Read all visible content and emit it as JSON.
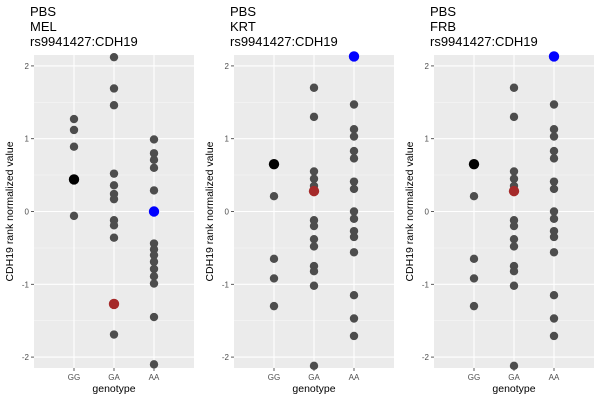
{
  "chart_data": [
    {
      "type": "scatter",
      "title": [
        "PBS",
        "MEL",
        "rs9941427:CDH19"
      ],
      "xlabel": "genotype",
      "ylabel": "CDH19 rank normalized value",
      "categories": [
        "GG",
        "GA",
        "AA"
      ],
      "ylim": [
        -2.15,
        2.15
      ],
      "yticks": [
        -2,
        -1,
        0,
        1,
        2
      ],
      "grid": true,
      "legend": "none",
      "colors": {
        "default": "#4d4d4d",
        "black": "#000000",
        "red": "#a52a2a",
        "blue": "#0000ff"
      },
      "points": [
        {
          "x": "GG",
          "y": 1.27
        },
        {
          "x": "GG",
          "y": 1.12
        },
        {
          "x": "GG",
          "y": 0.89
        },
        {
          "x": "GG",
          "y": -0.06
        },
        {
          "x": "GA",
          "y": 2.12
        },
        {
          "x": "GA",
          "y": 1.69
        },
        {
          "x": "GA",
          "y": 1.46
        },
        {
          "x": "GA",
          "y": 0.52
        },
        {
          "x": "GA",
          "y": 0.36
        },
        {
          "x": "GA",
          "y": 0.24
        },
        {
          "x": "GA",
          "y": 0.17
        },
        {
          "x": "GA",
          "y": -0.12
        },
        {
          "x": "GA",
          "y": -0.19
        },
        {
          "x": "GA",
          "y": -0.36
        },
        {
          "x": "GA",
          "y": -1.69
        },
        {
          "x": "AA",
          "y": 0.99
        },
        {
          "x": "AA",
          "y": 0.8
        },
        {
          "x": "AA",
          "y": 0.71
        },
        {
          "x": "AA",
          "y": 0.6
        },
        {
          "x": "AA",
          "y": 0.29
        },
        {
          "x": "AA",
          "y": -0.44
        },
        {
          "x": "AA",
          "y": -0.52
        },
        {
          "x": "AA",
          "y": -0.6
        },
        {
          "x": "AA",
          "y": -0.69
        },
        {
          "x": "AA",
          "y": -0.79
        },
        {
          "x": "AA",
          "y": -0.89
        },
        {
          "x": "AA",
          "y": -0.99
        },
        {
          "x": "AA",
          "y": -1.45
        },
        {
          "x": "AA",
          "y": -2.1
        }
      ],
      "highlights": [
        {
          "x": "GG",
          "y": 0.44,
          "color": "black"
        },
        {
          "x": "GA",
          "y": -1.27,
          "color": "red"
        },
        {
          "x": "AA",
          "y": 0.0,
          "color": "blue"
        }
      ]
    },
    {
      "type": "scatter",
      "title": [
        "PBS",
        "KRT",
        "rs9941427:CDH19"
      ],
      "xlabel": "genotype",
      "ylabel": "CDH19 rank normalized value",
      "categories": [
        "GG",
        "GA",
        "AA"
      ],
      "ylim": [
        -2.15,
        2.15
      ],
      "yticks": [
        -2,
        -1,
        0,
        1,
        2
      ],
      "grid": true,
      "legend": "none",
      "colors": {
        "default": "#4d4d4d",
        "black": "#000000",
        "red": "#a52a2a",
        "blue": "#0000ff"
      },
      "points": [
        {
          "x": "GG",
          "y": 0.21
        },
        {
          "x": "GG",
          "y": -0.65
        },
        {
          "x": "GG",
          "y": -0.92
        },
        {
          "x": "GG",
          "y": -1.3
        },
        {
          "x": "GA",
          "y": 1.7
        },
        {
          "x": "GA",
          "y": 1.3
        },
        {
          "x": "GA",
          "y": 0.55
        },
        {
          "x": "GA",
          "y": 0.45
        },
        {
          "x": "GA",
          "y": 0.35
        },
        {
          "x": "GA",
          "y": -0.12
        },
        {
          "x": "GA",
          "y": -0.2
        },
        {
          "x": "GA",
          "y": -0.38
        },
        {
          "x": "GA",
          "y": -0.48
        },
        {
          "x": "GA",
          "y": -0.75
        },
        {
          "x": "GA",
          "y": -0.82
        },
        {
          "x": "GA",
          "y": -1.02
        },
        {
          "x": "GA",
          "y": -2.12
        },
        {
          "x": "AA",
          "y": 1.47
        },
        {
          "x": "AA",
          "y": 1.13
        },
        {
          "x": "AA",
          "y": 1.03
        },
        {
          "x": "AA",
          "y": 0.83
        },
        {
          "x": "AA",
          "y": 0.73
        },
        {
          "x": "AA",
          "y": 0.41
        },
        {
          "x": "AA",
          "y": 0.31
        },
        {
          "x": "AA",
          "y": 0.0
        },
        {
          "x": "AA",
          "y": -0.1
        },
        {
          "x": "AA",
          "y": -0.27
        },
        {
          "x": "AA",
          "y": -0.35
        },
        {
          "x": "AA",
          "y": -0.56
        },
        {
          "x": "AA",
          "y": -1.15
        },
        {
          "x": "AA",
          "y": -1.47
        },
        {
          "x": "AA",
          "y": -1.71
        }
      ],
      "highlights": [
        {
          "x": "GG",
          "y": 0.65,
          "color": "black"
        },
        {
          "x": "GA",
          "y": 0.28,
          "color": "red"
        },
        {
          "x": "AA",
          "y": 2.13,
          "color": "blue"
        }
      ]
    },
    {
      "type": "scatter",
      "title": [
        "PBS",
        "FRB",
        "rs9941427:CDH19"
      ],
      "xlabel": "genotype",
      "ylabel": "CDH19 rank normalized value",
      "categories": [
        "GG",
        "GA",
        "AA"
      ],
      "ylim": [
        -2.15,
        2.15
      ],
      "yticks": [
        -2,
        -1,
        0,
        1,
        2
      ],
      "grid": true,
      "legend": "none",
      "colors": {
        "default": "#4d4d4d",
        "black": "#000000",
        "red": "#a52a2a",
        "blue": "#0000ff"
      },
      "points": [
        {
          "x": "GG",
          "y": 0.21
        },
        {
          "x": "GG",
          "y": -0.65
        },
        {
          "x": "GG",
          "y": -0.92
        },
        {
          "x": "GG",
          "y": -1.3
        },
        {
          "x": "GA",
          "y": 1.7
        },
        {
          "x": "GA",
          "y": 1.3
        },
        {
          "x": "GA",
          "y": 0.55
        },
        {
          "x": "GA",
          "y": 0.45
        },
        {
          "x": "GA",
          "y": 0.35
        },
        {
          "x": "GA",
          "y": -0.12
        },
        {
          "x": "GA",
          "y": -0.2
        },
        {
          "x": "GA",
          "y": -0.38
        },
        {
          "x": "GA",
          "y": -0.48
        },
        {
          "x": "GA",
          "y": -0.75
        },
        {
          "x": "GA",
          "y": -0.82
        },
        {
          "x": "GA",
          "y": -1.02
        },
        {
          "x": "GA",
          "y": -2.12
        },
        {
          "x": "AA",
          "y": 1.47
        },
        {
          "x": "AA",
          "y": 1.13
        },
        {
          "x": "AA",
          "y": 1.03
        },
        {
          "x": "AA",
          "y": 0.83
        },
        {
          "x": "AA",
          "y": 0.73
        },
        {
          "x": "AA",
          "y": 0.41
        },
        {
          "x": "AA",
          "y": 0.31
        },
        {
          "x": "AA",
          "y": 0.0
        },
        {
          "x": "AA",
          "y": -0.1
        },
        {
          "x": "AA",
          "y": -0.27
        },
        {
          "x": "AA",
          "y": -0.35
        },
        {
          "x": "AA",
          "y": -0.56
        },
        {
          "x": "AA",
          "y": -1.15
        },
        {
          "x": "AA",
          "y": -1.47
        },
        {
          "x": "AA",
          "y": -1.71
        }
      ],
      "highlights": [
        {
          "x": "GG",
          "y": 0.65,
          "color": "black"
        },
        {
          "x": "GA",
          "y": 0.28,
          "color": "red"
        },
        {
          "x": "AA",
          "y": 2.13,
          "color": "blue"
        }
      ]
    }
  ]
}
